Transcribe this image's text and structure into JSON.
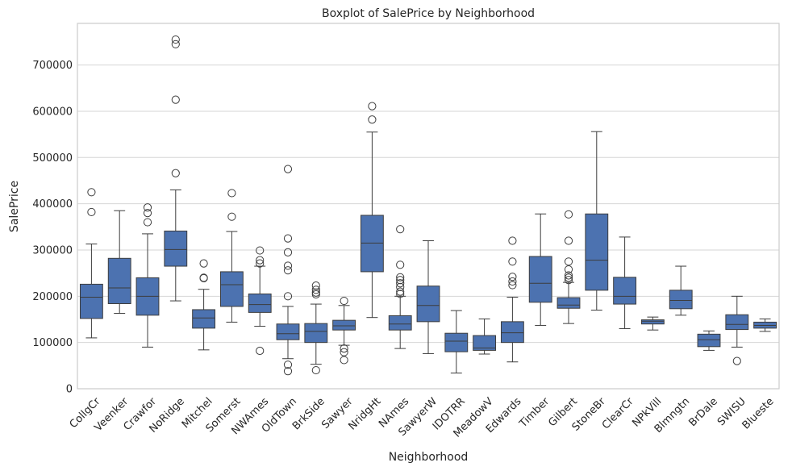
{
  "chart_data": {
    "type": "boxplot",
    "title": "Boxplot of SalePrice by Neighborhood",
    "xlabel": "Neighborhood",
    "ylabel": "SalePrice",
    "ylim": [
      0,
      790000
    ],
    "yticks": [
      0,
      100000,
      200000,
      300000,
      400000,
      500000,
      600000,
      700000
    ],
    "grid": true,
    "box_color": "#4c72b0",
    "line_color": "#3d3d3d",
    "series": [
      {
        "name": "CollgCr",
        "whisker_low": 110000,
        "q1": 152000,
        "median": 198000,
        "q3": 226000,
        "whisker_high": 313000,
        "outliers": [
          382000,
          425000
        ]
      },
      {
        "name": "Veenker",
        "whisker_low": 163000,
        "q1": 184000,
        "median": 218000,
        "q3": 282000,
        "whisker_high": 385000,
        "outliers": []
      },
      {
        "name": "Crawfor",
        "whisker_low": 90000,
        "q1": 159000,
        "median": 200000,
        "q3": 240000,
        "whisker_high": 335000,
        "outliers": [
          360000,
          380000,
          392000
        ]
      },
      {
        "name": "NoRidge",
        "whisker_low": 190000,
        "q1": 265000,
        "median": 301000,
        "q3": 341000,
        "whisker_high": 430000,
        "outliers": [
          466000,
          625000,
          745000,
          755000
        ]
      },
      {
        "name": "Mitchel",
        "whisker_low": 84000,
        "q1": 131000,
        "median": 153000,
        "q3": 171000,
        "whisker_high": 215000,
        "outliers": [
          239000,
          240000,
          271000
        ]
      },
      {
        "name": "Somerst",
        "whisker_low": 144000,
        "q1": 178000,
        "median": 225000,
        "q3": 253000,
        "whisker_high": 340000,
        "outliers": [
          372000,
          423000
        ]
      },
      {
        "name": "NWAmes",
        "whisker_low": 135000,
        "q1": 165000,
        "median": 182000,
        "q3": 205000,
        "whisker_high": 265000,
        "outliers": [
          82000,
          271000,
          278000,
          299000
        ]
      },
      {
        "name": "OldTown",
        "whisker_low": 65000,
        "q1": 106000,
        "median": 119000,
        "q3": 140000,
        "whisker_high": 178000,
        "outliers": [
          38000,
          52000,
          200000,
          256000,
          266000,
          295000,
          325000,
          475000
        ]
      },
      {
        "name": "BrkSide",
        "whisker_low": 53000,
        "q1": 100000,
        "median": 124000,
        "q3": 141000,
        "whisker_high": 183000,
        "outliers": [
          40000,
          204000,
          208000,
          214000,
          223000
        ]
      },
      {
        "name": "Sawyer",
        "whisker_low": 94000,
        "q1": 127000,
        "median": 136000,
        "q3": 148000,
        "whisker_high": 180000,
        "outliers": [
          62000,
          79000,
          87000,
          190000
        ]
      },
      {
        "name": "NridgHt",
        "whisker_low": 154000,
        "q1": 253000,
        "median": 315000,
        "q3": 375000,
        "whisker_high": 555000,
        "outliers": [
          582000,
          611000
        ]
      },
      {
        "name": "NAmes",
        "whisker_low": 87000,
        "q1": 127000,
        "median": 140000,
        "q3": 158000,
        "whisker_high": 200000,
        "outliers": [
          205000,
          210000,
          220000,
          228000,
          235000,
          241000,
          268000,
          345000
        ]
      },
      {
        "name": "SawyerW",
        "whisker_low": 76000,
        "q1": 145000,
        "median": 180000,
        "q3": 222000,
        "whisker_high": 320000,
        "outliers": []
      },
      {
        "name": "IDOTRR",
        "whisker_low": 34000,
        "q1": 80000,
        "median": 103000,
        "q3": 120000,
        "whisker_high": 169000,
        "outliers": []
      },
      {
        "name": "MeadowV",
        "whisker_low": 75000,
        "q1": 83000,
        "median": 88000,
        "q3": 115000,
        "whisker_high": 151000,
        "outliers": []
      },
      {
        "name": "Edwards",
        "whisker_low": 58000,
        "q1": 100000,
        "median": 121000,
        "q3": 145000,
        "whisker_high": 198000,
        "outliers": [
          224000,
          232000,
          242000,
          275000,
          320000
        ]
      },
      {
        "name": "Timber",
        "whisker_low": 137000,
        "q1": 187000,
        "median": 228000,
        "q3": 286000,
        "whisker_high": 378000,
        "outliers": []
      },
      {
        "name": "Gilbert",
        "whisker_low": 141000,
        "q1": 174000,
        "median": 181000,
        "q3": 197000,
        "whisker_high": 230000,
        "outliers": [
          235000,
          240000,
          245000,
          258000,
          275000,
          320000,
          377000
        ]
      },
      {
        "name": "StoneBr",
        "whisker_low": 170000,
        "q1": 213000,
        "median": 278000,
        "q3": 378000,
        "whisker_high": 556000,
        "outliers": []
      },
      {
        "name": "ClearCr",
        "whisker_low": 130000,
        "q1": 183000,
        "median": 200000,
        "q3": 241000,
        "whisker_high": 328000,
        "outliers": []
      },
      {
        "name": "NPkVill",
        "whisker_low": 127000,
        "q1": 140000,
        "median": 146000,
        "q3": 149000,
        "whisker_high": 155000,
        "outliers": []
      },
      {
        "name": "Blmngtn",
        "whisker_low": 159000,
        "q1": 173000,
        "median": 191000,
        "q3": 213000,
        "whisker_high": 265000,
        "outliers": []
      },
      {
        "name": "BrDale",
        "whisker_low": 83000,
        "q1": 91000,
        "median": 106000,
        "q3": 118000,
        "whisker_high": 125000,
        "outliers": []
      },
      {
        "name": "SWISU",
        "whisker_low": 90000,
        "q1": 128000,
        "median": 139000,
        "q3": 160000,
        "whisker_high": 200000,
        "outliers": [
          60000
        ]
      },
      {
        "name": "Blueste",
        "whisker_low": 124000,
        "q1": 131000,
        "median": 137000,
        "q3": 144000,
        "whisker_high": 151000,
        "outliers": []
      }
    ]
  }
}
